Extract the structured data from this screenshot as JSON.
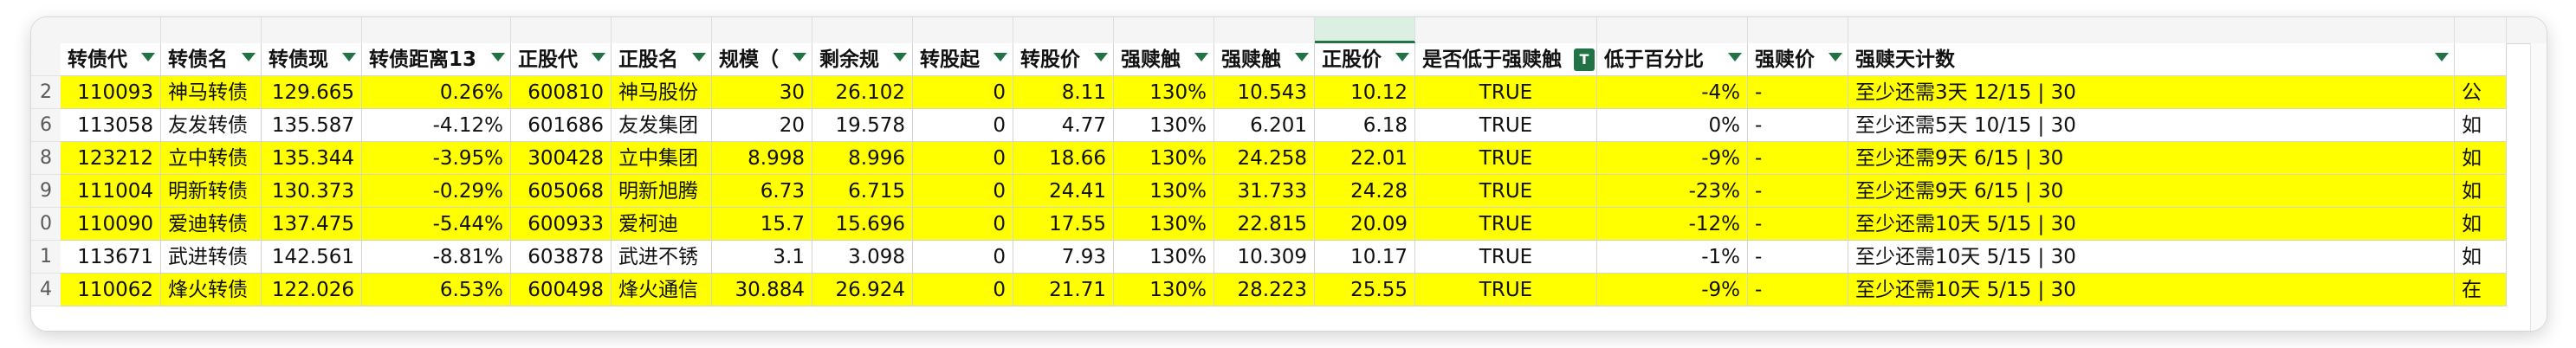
{
  "column_letters": [
    "",
    "",
    "",
    "",
    "",
    "",
    "",
    "",
    "",
    "",
    "",
    "",
    "",
    "",
    "",
    "",
    "",
    "",
    ""
  ],
  "headers": [
    "转债代",
    "转债名",
    "转债现",
    "转债距离13",
    "正股代",
    "正股名",
    "规模（",
    "剩余规",
    "转股起",
    "转股价",
    "强赎触",
    "强赎触",
    "正股价",
    "是否低于强赎触",
    "低于百分比",
    "强赎价",
    "强赎天计数"
  ],
  "row_numbers": [
    "",
    "2",
    "6",
    "8",
    "9",
    "0",
    "1",
    "4"
  ],
  "rows": [
    {
      "highlight": true,
      "cells": [
        "110093",
        "神马转债",
        "129.665",
        "0.26%",
        "600810",
        "神马股份",
        "30",
        "26.102",
        "0",
        "8.11",
        "130%",
        "10.543",
        "10.12",
        "TRUE",
        "-4%",
        "-",
        "至少还需3天 12/15 | 30",
        "公"
      ]
    },
    {
      "highlight": false,
      "cells": [
        "113058",
        "友发转债",
        "135.587",
        "-4.12%",
        "601686",
        "友发集团",
        "20",
        "19.578",
        "0",
        "4.77",
        "130%",
        "6.201",
        "6.18",
        "TRUE",
        "0%",
        "-",
        "至少还需5天 10/15 | 30",
        "如"
      ]
    },
    {
      "highlight": true,
      "cells": [
        "123212",
        "立中转债",
        "135.344",
        "-3.95%",
        "300428",
        "立中集团",
        "8.998",
        "8.996",
        "0",
        "18.66",
        "130%",
        "24.258",
        "22.01",
        "TRUE",
        "-9%",
        "-",
        "至少还需9天 6/15 | 30",
        "如"
      ]
    },
    {
      "highlight": true,
      "cells": [
        "111004",
        "明新转债",
        "130.373",
        "-0.29%",
        "605068",
        "明新旭腾",
        "6.73",
        "6.715",
        "0",
        "24.41",
        "130%",
        "31.733",
        "24.28",
        "TRUE",
        "-23%",
        "-",
        "至少还需9天 6/15 | 30",
        "如"
      ]
    },
    {
      "highlight": true,
      "cells": [
        "110090",
        "爱迪转债",
        "137.475",
        "-5.44%",
        "600933",
        "爱柯迪",
        "15.7",
        "15.696",
        "0",
        "17.55",
        "130%",
        "22.815",
        "20.09",
        "TRUE",
        "-12%",
        "-",
        "至少还需10天 5/15 | 30",
        "如"
      ]
    },
    {
      "highlight": false,
      "cells": [
        "113671",
        "武进转债",
        "142.561",
        "-8.81%",
        "603878",
        "武进不锈",
        "3.1",
        "3.098",
        "0",
        "7.93",
        "130%",
        "10.309",
        "10.17",
        "TRUE",
        "-1%",
        "-",
        "至少还需10天 5/15 | 30",
        "如"
      ]
    },
    {
      "highlight": true,
      "cells": [
        "110062",
        "烽火转债",
        "122.026",
        "6.53%",
        "600498",
        "烽火通信",
        "30.884",
        "26.924",
        "0",
        "21.71",
        "130%",
        "28.223",
        "25.55",
        "TRUE",
        "-9%",
        "-",
        "至少还需10天 5/15 | 30",
        "在"
      ]
    }
  ],
  "colors": {
    "highlight": "#ffff00",
    "accent": "#217346"
  }
}
